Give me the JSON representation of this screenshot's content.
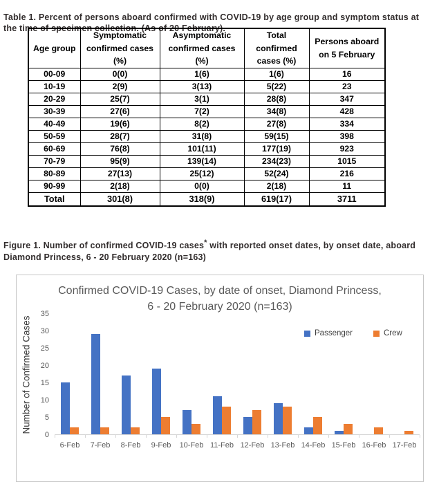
{
  "table_caption": "Table 1. Percent of persons aboard confirmed with COVID-19 by age group and symptom status at the time of specimen collection. (As of 20 February).",
  "table": {
    "headers": [
      "Age group",
      "Symptomatic confirmed cases (%)",
      "Asymptomatic confirmed cases (%)",
      "Total confirmed cases (%)",
      "Persons aboard on 5 February"
    ],
    "rows": [
      [
        "00-09",
        "0(0)",
        "1(6)",
        "1(6)",
        "16"
      ],
      [
        "10-19",
        "2(9)",
        "3(13)",
        "5(22)",
        "23"
      ],
      [
        "20-29",
        "25(7)",
        "3(1)",
        "28(8)",
        "347"
      ],
      [
        "30-39",
        "27(6)",
        "7(2)",
        "34(8)",
        "428"
      ],
      [
        "40-49",
        "19(6)",
        "8(2)",
        "27(8)",
        "334"
      ],
      [
        "50-59",
        "28(7)",
        "31(8)",
        "59(15)",
        "398"
      ],
      [
        "60-69",
        "76(8)",
        "101(11)",
        "177(19)",
        "923"
      ],
      [
        "70-79",
        "95(9)",
        "139(14)",
        "234(23)",
        "1015"
      ],
      [
        "80-89",
        "27(13)",
        "25(12)",
        "52(24)",
        "216"
      ],
      [
        "90-99",
        "2(18)",
        "0(0)",
        "2(18)",
        "11"
      ]
    ],
    "total_row": [
      "Total",
      "301(8)",
      "318(9)",
      "619(17)",
      "3711"
    ]
  },
  "figure_caption": {
    "prefix": "Figure 1. Number of confirmed COVID-19 cases",
    "superscript": "*",
    "suffix": " with reported onset dates, by onset date, aboard Diamond Princess, 6 - 20 February 2020 (n=163)"
  },
  "chart_data": {
    "type": "bar",
    "title": "Confirmed COVID-19 Cases, by date of onset, Diamond Princess, 6 - 20 February 2020 (n=163)",
    "ylabel": "Number of Confirmed Cases",
    "xlabel": "",
    "categories": [
      "6-Feb",
      "7-Feb",
      "8-Feb",
      "9-Feb",
      "10-Feb",
      "11-Feb",
      "12-Feb",
      "13-Feb",
      "14-Feb",
      "15-Feb",
      "16-Feb",
      "17-Feb"
    ],
    "series": [
      {
        "name": "Passenger",
        "color": "#4472C4",
        "values": [
          15,
          29,
          17,
          19,
          7,
          11,
          5,
          9,
          2,
          1,
          0,
          0
        ]
      },
      {
        "name": "Crew",
        "color": "#ED7D31",
        "values": [
          2,
          2,
          2,
          5,
          3,
          8,
          7,
          8,
          5,
          3,
          2,
          1
        ]
      }
    ],
    "ylim": [
      0,
      35
    ],
    "yticks": [
      0,
      5,
      10,
      15,
      20,
      25,
      30,
      35
    ],
    "grid": false,
    "legend_position": "top-right",
    "axis_color": "#d6d6d6",
    "tick_label_color": "#595959"
  }
}
